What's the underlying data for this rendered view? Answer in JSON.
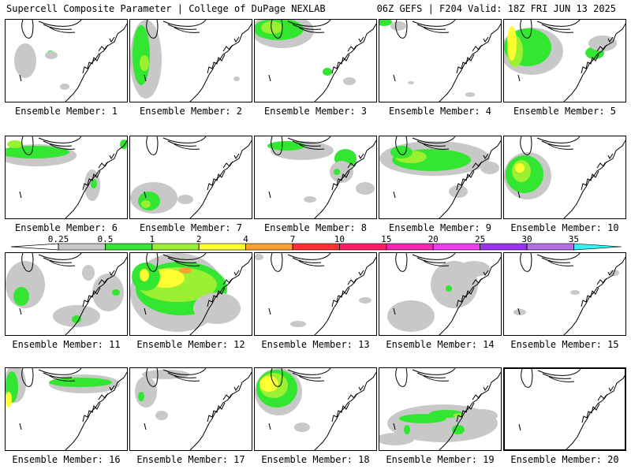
{
  "header": {
    "title_left": "Supercell Composite Parameter | College of DuPage NEXLAB",
    "title_right": "06Z GEFS | F204 Valid: 18Z FRI JUN 13 2025"
  },
  "member_prefix": "Ensemble Member:",
  "panels": [
    {
      "member": 1,
      "label": "Ensemble Member: 1"
    },
    {
      "member": 2,
      "label": "Ensemble Member: 2"
    },
    {
      "member": 3,
      "label": "Ensemble Member: 3"
    },
    {
      "member": 4,
      "label": "Ensemble Member: 4"
    },
    {
      "member": 5,
      "label": "Ensemble Member: 5"
    },
    {
      "member": 6,
      "label": "Ensemble Member: 6"
    },
    {
      "member": 7,
      "label": "Ensemble Member: 7"
    },
    {
      "member": 8,
      "label": "Ensemble Member: 8"
    },
    {
      "member": 9,
      "label": "Ensemble Member: 9"
    },
    {
      "member": 10,
      "label": "Ensemble Member: 10"
    },
    {
      "member": 11,
      "label": "Ensemble Member: 11"
    },
    {
      "member": 12,
      "label": "Ensemble Member: 12"
    },
    {
      "member": 13,
      "label": "Ensemble Member: 13"
    },
    {
      "member": 14,
      "label": "Ensemble Member: 14"
    },
    {
      "member": 15,
      "label": "Ensemble Member: 15"
    },
    {
      "member": 16,
      "label": "Ensemble Member: 16"
    },
    {
      "member": 17,
      "label": "Ensemble Member: 17"
    },
    {
      "member": 18,
      "label": "Ensemble Member: 18"
    },
    {
      "member": 19,
      "label": "Ensemble Member: 19"
    },
    {
      "member": 20,
      "label": "Ensemble Member: 20"
    }
  ],
  "colorbar": {
    "ticks": [
      "0.25",
      "0.5",
      "1",
      "2",
      "4",
      "7",
      "10",
      "15",
      "20",
      "25",
      "30",
      "35"
    ],
    "colors": [
      "#c8c8c8",
      "#32e632",
      "#9bf032",
      "#ffff32",
      "#ffa032",
      "#ff3232",
      "#ff1e64",
      "#f028b4",
      "#f03cf0",
      "#9b32f0",
      "#b46ee6",
      "#32f5f5"
    ]
  }
}
